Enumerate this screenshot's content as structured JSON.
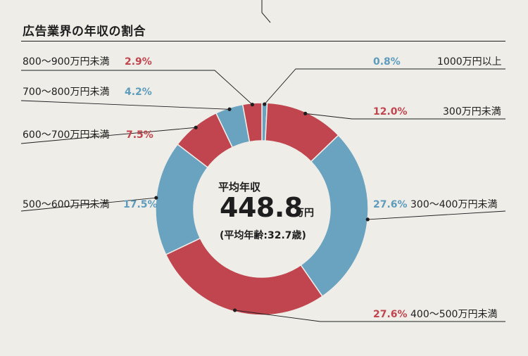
{
  "title": "広告業界の年収の割合",
  "center": {
    "label": "平均年収",
    "value": "448.8",
    "unit": "万円",
    "sub": "(平均年齢:32.7歳)"
  },
  "colors": {
    "red": "#c0454f",
    "blue": "#6aa3c0",
    "text": "#1e1e1e",
    "background": "#efede8"
  },
  "chart_data": {
    "type": "pie",
    "title": "広告業界の年収の割合",
    "slices": [
      {
        "label": "1000万円以上",
        "pct_text": "0.8%",
        "value": 0.8,
        "color": "blue"
      },
      {
        "label": "300万円未満",
        "pct_text": "12.0%",
        "value": 12.0,
        "color": "red"
      },
      {
        "label": "300〜400万円未満",
        "pct_text": "27.6%",
        "value": 27.6,
        "color": "blue"
      },
      {
        "label": "400〜500万円未満",
        "pct_text": "27.6%",
        "value": 27.6,
        "color": "red"
      },
      {
        "label": "500〜600万円未満",
        "pct_text": "17.5%",
        "value": 17.5,
        "color": "blue"
      },
      {
        "label": "600〜700万円未満",
        "pct_text": "7.5%",
        "value": 7.5,
        "color": "red"
      },
      {
        "label": "700〜800万円未満",
        "pct_text": "4.2%",
        "value": 4.2,
        "color": "blue"
      },
      {
        "label": "800〜900万円未満",
        "pct_text": "2.9%",
        "value": 2.9,
        "color": "red"
      }
    ]
  }
}
